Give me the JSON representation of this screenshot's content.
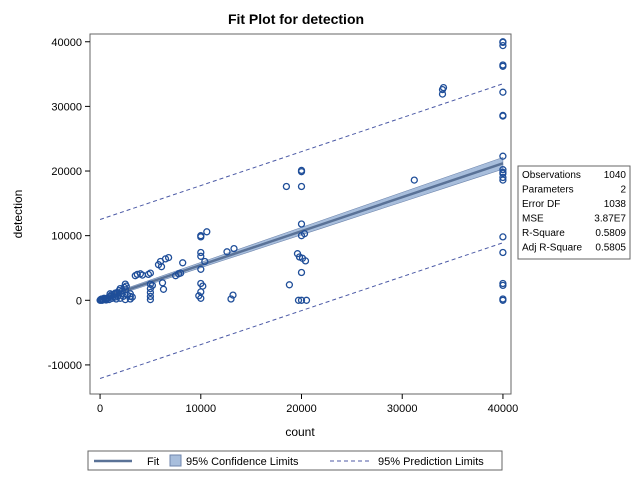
{
  "chart_data": {
    "type": "scatter",
    "title": "Fit Plot for detection",
    "xlabel": "count",
    "ylabel": "detection",
    "xlim": [
      -1000,
      40800
    ],
    "ylim": [
      -14500,
      41200
    ],
    "x_ticks": [
      0,
      10000,
      20000,
      30000,
      40000
    ],
    "y_ticks": [
      -10000,
      0,
      10000,
      20000,
      30000,
      40000
    ],
    "fit_line": {
      "name": "Fit",
      "intercept": 200,
      "slope": 0.525
    },
    "confidence_band": {
      "name": "95% Confidence Limits",
      "half_width_at_0": 250,
      "half_width_at_max": 900
    },
    "prediction_limits": {
      "name": "95% Prediction Limits",
      "offset": 12300
    },
    "points": [
      [
        0,
        0
      ],
      [
        50,
        100
      ],
      [
        100,
        50
      ],
      [
        150,
        200
      ],
      [
        200,
        0
      ],
      [
        300,
        150
      ],
      [
        400,
        300
      ],
      [
        500,
        100
      ],
      [
        600,
        50
      ],
      [
        700,
        200
      ],
      [
        800,
        400
      ],
      [
        900,
        100
      ],
      [
        1000,
        600
      ],
      [
        1000,
        1000
      ],
      [
        1100,
        800
      ],
      [
        1200,
        300
      ],
      [
        1300,
        600
      ],
      [
        1400,
        900
      ],
      [
        1500,
        500
      ],
      [
        1500,
        1100
      ],
      [
        1600,
        200
      ],
      [
        1700,
        1200
      ],
      [
        1800,
        700
      ],
      [
        1900,
        1500
      ],
      [
        2000,
        300
      ],
      [
        2000,
        1800
      ],
      [
        2100,
        1000
      ],
      [
        2200,
        1400
      ],
      [
        2300,
        600
      ],
      [
        2400,
        2000
      ],
      [
        2500,
        100
      ],
      [
        2500,
        2500
      ],
      [
        2500,
        1600
      ],
      [
        2600,
        2200
      ],
      [
        2700,
        800
      ],
      [
        3000,
        200
      ],
      [
        3000,
        1000
      ],
      [
        3000,
        600
      ],
      [
        3200,
        500
      ],
      [
        3500,
        3800
      ],
      [
        3700,
        4000
      ],
      [
        4000,
        4100
      ],
      [
        4200,
        3900
      ],
      [
        4800,
        4000
      ],
      [
        5000,
        2500
      ],
      [
        5000,
        1800
      ],
      [
        5000,
        1200
      ],
      [
        5000,
        600
      ],
      [
        5000,
        100
      ],
      [
        5000,
        4200
      ],
      [
        5200,
        2300
      ],
      [
        5800,
        5500
      ],
      [
        6000,
        6000
      ],
      [
        6100,
        5200
      ],
      [
        6200,
        2700
      ],
      [
        6300,
        1700
      ],
      [
        6500,
        6400
      ],
      [
        6800,
        6600
      ],
      [
        7500,
        3800
      ],
      [
        7800,
        4100
      ],
      [
        8000,
        4200
      ],
      [
        8200,
        5800
      ],
      [
        9800,
        700
      ],
      [
        10000,
        10000
      ],
      [
        10000,
        9800
      ],
      [
        10000,
        7400
      ],
      [
        10000,
        6800
      ],
      [
        10000,
        4800
      ],
      [
        10000,
        2600
      ],
      [
        10000,
        1300
      ],
      [
        10000,
        300
      ],
      [
        10200,
        2200
      ],
      [
        10400,
        6000
      ],
      [
        10600,
        10600
      ],
      [
        12600,
        7500
      ],
      [
        13000,
        200
      ],
      [
        13200,
        800
      ],
      [
        13300,
        8000
      ],
      [
        18500,
        17600
      ],
      [
        18800,
        2400
      ],
      [
        19600,
        7200
      ],
      [
        19700,
        0
      ],
      [
        19800,
        6700
      ],
      [
        20000,
        20100
      ],
      [
        20000,
        19900
      ],
      [
        20000,
        17600
      ],
      [
        20000,
        11800
      ],
      [
        20000,
        10000
      ],
      [
        20000,
        4300
      ],
      [
        20000,
        0
      ],
      [
        20100,
        6500
      ],
      [
        20300,
        10300
      ],
      [
        20400,
        6100
      ],
      [
        20500,
        0
      ],
      [
        31200,
        18600
      ],
      [
        34000,
        32600
      ],
      [
        34000,
        31900
      ],
      [
        34100,
        32900
      ],
      [
        40000,
        40000
      ],
      [
        40000,
        39900
      ],
      [
        40000,
        39400
      ],
      [
        40000,
        36400
      ],
      [
        40000,
        36200
      ],
      [
        40000,
        32200
      ],
      [
        40000,
        28600
      ],
      [
        40000,
        28500
      ],
      [
        40000,
        22300
      ],
      [
        40000,
        20200
      ],
      [
        40000,
        19800
      ],
      [
        40000,
        19600
      ],
      [
        40000,
        19000
      ],
      [
        40000,
        18600
      ],
      [
        40000,
        9800
      ],
      [
        40000,
        7400
      ],
      [
        40000,
        2600
      ],
      [
        40000,
        2300
      ],
      [
        40000,
        200
      ],
      [
        40000,
        0
      ]
    ],
    "stats": [
      {
        "label": "Observations",
        "value": "1040"
      },
      {
        "label": "Parameters",
        "value": "2"
      },
      {
        "label": "Error DF",
        "value": "1038"
      },
      {
        "label": "MSE",
        "value": "3.87E7"
      },
      {
        "label": "R-Square",
        "value": "0.5809"
      },
      {
        "label": "Adj R-Square",
        "value": "0.5805"
      }
    ],
    "legend": [
      {
        "name": "Fit",
        "kind": "line"
      },
      {
        "name": "95% Confidence Limits",
        "kind": "band"
      },
      {
        "name": "95% Prediction Limits",
        "kind": "dashed"
      }
    ],
    "colors": {
      "marker": "#1f4e99",
      "fit": "#5a7297",
      "band": "#a8bedc",
      "band_edge": "#6f86ad",
      "prediction": "#4c5aa6",
      "frame": "#666666"
    }
  }
}
